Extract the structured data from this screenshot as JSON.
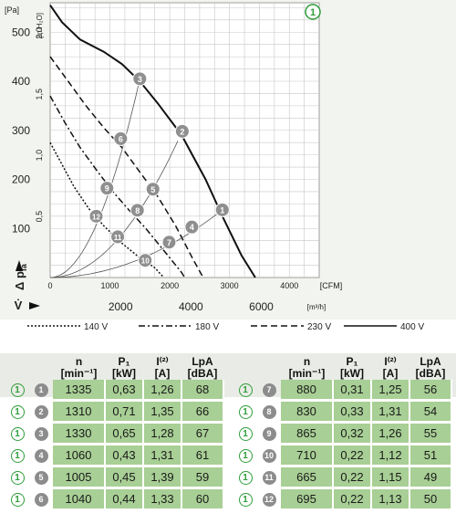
{
  "chart_data": {
    "type": "line",
    "y_axis_label": "[Pa]",
    "y2_axis_label": "[in H₂O]",
    "y_ticks": [
      100,
      200,
      300,
      400,
      500
    ],
    "y2_ticks": [
      "0,5",
      "1,0",
      "1,5",
      "2,0"
    ],
    "x_cfm_ticks": [
      "0",
      "1000",
      "2000",
      "3000",
      "4000"
    ],
    "x_cfm_unit": "[CFM]",
    "x_m3h_ticks": [
      "2000",
      "4000",
      "6000"
    ],
    "x_m3h_unit": "[m³/h]",
    "y_symbol": "Δ p",
    "y_symbol_sub": "fa",
    "x_symbol": "V̇",
    "xlim_cfm": [
      0,
      4500
    ],
    "ylim_pa": [
      0,
      560
    ],
    "curve_badge": "1",
    "legend": [
      {
        "label": "140 V",
        "style": "dotted"
      },
      {
        "label": "180 V",
        "style": "dashdot"
      },
      {
        "label": "230 V",
        "style": "dashed"
      },
      {
        "label": "400 V",
        "style": "solid"
      }
    ],
    "series": [
      {
        "name": "400 V",
        "style": "solid",
        "points": [
          [
            0,
            555
          ],
          [
            200,
            520
          ],
          [
            500,
            485
          ],
          [
            900,
            460
          ],
          [
            1200,
            435
          ],
          [
            1500,
            400
          ],
          [
            1800,
            355
          ],
          [
            2200,
            290
          ],
          [
            2600,
            200
          ],
          [
            2900,
            120
          ],
          [
            3200,
            45
          ],
          [
            3430,
            0
          ]
        ]
      },
      {
        "name": "230 V",
        "style": "dashed",
        "points": [
          [
            0,
            450
          ],
          [
            300,
            400
          ],
          [
            600,
            350
          ],
          [
            900,
            305
          ],
          [
            1200,
            265
          ],
          [
            1500,
            215
          ],
          [
            1800,
            165
          ],
          [
            2100,
            105
          ],
          [
            2400,
            35
          ],
          [
            2560,
            0
          ]
        ]
      },
      {
        "name": "180 V",
        "style": "dashdot",
        "points": [
          [
            0,
            370
          ],
          [
            250,
            315
          ],
          [
            500,
            265
          ],
          [
            800,
            215
          ],
          [
            1050,
            175
          ],
          [
            1300,
            140
          ],
          [
            1600,
            100
          ],
          [
            1900,
            55
          ],
          [
            2200,
            10
          ],
          [
            2250,
            0
          ]
        ]
      },
      {
        "name": "140 V",
        "style": "dotted",
        "points": [
          [
            0,
            275
          ],
          [
            200,
            230
          ],
          [
            400,
            185
          ],
          [
            650,
            140
          ],
          [
            900,
            105
          ],
          [
            1200,
            70
          ],
          [
            1500,
            40
          ],
          [
            1750,
            20
          ],
          [
            1900,
            0
          ]
        ]
      }
    ],
    "operating_points": [
      {
        "id": "1",
        "cfm": 2880,
        "pa": 138
      },
      {
        "id": "2",
        "cfm": 2210,
        "pa": 298
      },
      {
        "id": "3",
        "cfm": 1500,
        "pa": 405
      },
      {
        "id": "4",
        "cfm": 2370,
        "pa": 103
      },
      {
        "id": "5",
        "cfm": 1720,
        "pa": 180
      },
      {
        "id": "6",
        "cfm": 1180,
        "pa": 283
      },
      {
        "id": "7",
        "cfm": 1990,
        "pa": 72
      },
      {
        "id": "8",
        "cfm": 1460,
        "pa": 137
      },
      {
        "id": "9",
        "cfm": 950,
        "pa": 182
      },
      {
        "id": "10",
        "cfm": 1590,
        "pa": 35
      },
      {
        "id": "11",
        "cfm": 1130,
        "pa": 83
      },
      {
        "id": "12",
        "cfm": 770,
        "pa": 125
      }
    ],
    "system_curves": [
      {
        "to": [
          "1",
          "4",
          "7",
          "10"
        ]
      },
      {
        "to": [
          "2",
          "5",
          "8",
          "11"
        ]
      },
      {
        "to": [
          "3",
          "6",
          "9",
          "12"
        ]
      }
    ]
  },
  "table": {
    "headers": {
      "n": "n",
      "n_unit": "[min⁻¹]",
      "p": "P₁",
      "p_unit": "[kW]",
      "i": "I⁽²⁾",
      "i_unit": "[A]",
      "l": "LpA",
      "l_unit": "[dBA]"
    },
    "badge": "1",
    "left": [
      {
        "id": "1",
        "n": "1335",
        "p": "0,63",
        "i": "1,26",
        "l": "68"
      },
      {
        "id": "2",
        "n": "1310",
        "p": "0,71",
        "i": "1,35",
        "l": "66"
      },
      {
        "id": "3",
        "n": "1330",
        "p": "0,65",
        "i": "1,28",
        "l": "67"
      },
      {
        "id": "4",
        "n": "1060",
        "p": "0,43",
        "i": "1,31",
        "l": "61"
      },
      {
        "id": "5",
        "n": "1005",
        "p": "0,45",
        "i": "1,39",
        "l": "59"
      },
      {
        "id": "6",
        "n": "1040",
        "p": "0,44",
        "i": "1,33",
        "l": "60"
      }
    ],
    "right": [
      {
        "id": "7",
        "n": "880",
        "p": "0,31",
        "i": "1,25",
        "l": "56"
      },
      {
        "id": "8",
        "n": "830",
        "p": "0,33",
        "i": "1,31",
        "l": "54"
      },
      {
        "id": "9",
        "n": "865",
        "p": "0,32",
        "i": "1,26",
        "l": "55"
      },
      {
        "id": "10",
        "n": "710",
        "p": "0,22",
        "i": "1,12",
        "l": "51"
      },
      {
        "id": "11",
        "n": "665",
        "p": "0,22",
        "i": "1,15",
        "l": "49"
      },
      {
        "id": "12",
        "n": "695",
        "p": "0,22",
        "i": "1,13",
        "l": "50"
      }
    ]
  }
}
